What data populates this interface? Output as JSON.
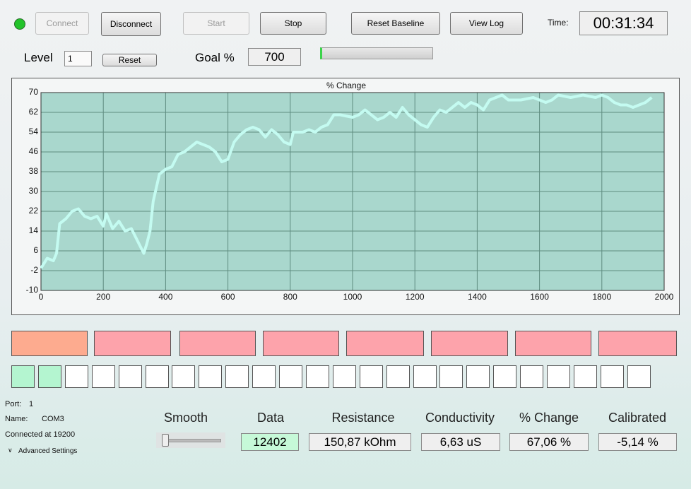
{
  "toolbar": {
    "buttons": [
      "Connect",
      "Disconnect",
      "Start",
      "Stop",
      "Reset Baseline",
      "View Log"
    ],
    "time_label": "Time:",
    "time": "00:31:34"
  },
  "level": {
    "label": "Level",
    "value": "1",
    "reset": "Reset"
  },
  "goal": {
    "label": "Goal %",
    "value": "700"
  },
  "chart_data": {
    "type": "line",
    "title": "% Change",
    "color": "#c4fbf1",
    "x": [
      0,
      20,
      40,
      50,
      60,
      80,
      100,
      120,
      140,
      160,
      180,
      200,
      210,
      230,
      250,
      270,
      290,
      310,
      330,
      340,
      350,
      360,
      380,
      400,
      420,
      440,
      460,
      480,
      500,
      520,
      540,
      560,
      580,
      600,
      620,
      640,
      660,
      680,
      700,
      720,
      740,
      760,
      780,
      800,
      810,
      840,
      860,
      880,
      900,
      920,
      940,
      960,
      1000,
      1020,
      1040,
      1060,
      1080,
      1100,
      1120,
      1140,
      1160,
      1180,
      1200,
      1220,
      1240,
      1260,
      1280,
      1300,
      1320,
      1340,
      1360,
      1380,
      1400,
      1420,
      1440,
      1460,
      1480,
      1500,
      1540,
      1580,
      1600,
      1620,
      1640,
      1660,
      1700,
      1740,
      1780,
      1800,
      1820,
      1840,
      1860,
      1880,
      1900,
      1920,
      1940,
      1960
    ],
    "values": [
      -1,
      3,
      2,
      5,
      17,
      19,
      22,
      23,
      20,
      19,
      20,
      16,
      21,
      15,
      18,
      14,
      15,
      10,
      5,
      9,
      14,
      26,
      37,
      39,
      40,
      45,
      46,
      48,
      50,
      49,
      48,
      46,
      42,
      43,
      50,
      53,
      55,
      56,
      55,
      52,
      55,
      53,
      50,
      49,
      54,
      54,
      55,
      54,
      56,
      57,
      61,
      61,
      60,
      61,
      63,
      61,
      59,
      60,
      62,
      60,
      64,
      61,
      59,
      57,
      56,
      60,
      63,
      62,
      64,
      66,
      64,
      66,
      65,
      63,
      67,
      68,
      69,
      67,
      67,
      68,
      67,
      66,
      67,
      69,
      68,
      69,
      68,
      69,
      68,
      66,
      65,
      65,
      64,
      65,
      66,
      68
    ],
    "xlim": [
      0,
      2000
    ],
    "xticks": [
      0,
      200,
      400,
      600,
      800,
      1000,
      1200,
      1400,
      1600,
      1800,
      2000
    ],
    "ylim": [
      -10,
      70
    ],
    "yticks": [
      -10,
      -2,
      6,
      14,
      22,
      30,
      38,
      46,
      54,
      62,
      70
    ],
    "grid": true
  },
  "status": {
    "port_label": "Port:",
    "port": "1",
    "name_label": "Name:",
    "name": "COM3",
    "connection": "Connected at 19200",
    "advanced": "Advanced Settings"
  },
  "readouts": {
    "smooth": "Smooth",
    "labels": [
      "Data",
      "Resistance",
      "Conductivity",
      "% Change",
      "Calibrated"
    ],
    "values": [
      "12402",
      "150,87 kOhm",
      "6,63 uS",
      "67,06 %",
      "-5,14 %"
    ]
  }
}
